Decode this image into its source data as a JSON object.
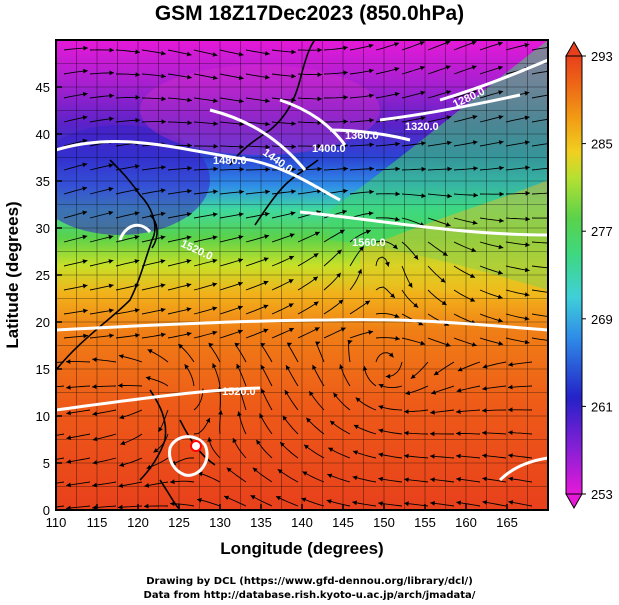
{
  "title": "GSM 18Z17Dec2023 (850.0hPa)",
  "x_axis": {
    "label": "Longitude (degrees)",
    "min": 110,
    "max": 170,
    "ticks": [
      "110",
      "115",
      "120",
      "125",
      "130",
      "135",
      "140",
      "145",
      "150",
      "155",
      "160",
      "165"
    ]
  },
  "y_axis": {
    "label": "Latitude  (degrees)",
    "min": 0,
    "max": 50,
    "ticks": [
      "0",
      "5",
      "10",
      "15",
      "20",
      "25",
      "30",
      "35",
      "40",
      "45"
    ]
  },
  "colorbar": {
    "min": 253,
    "max": 293,
    "ticks": [
      "253",
      "261",
      "269",
      "277",
      "285",
      "293"
    ],
    "colors": [
      "#e619d8",
      "#8a1fd6",
      "#2422c8",
      "#2f8ee8",
      "#3fd0d8",
      "#3ed87e",
      "#5ad24a",
      "#b4e032",
      "#f0d020",
      "#f29a14",
      "#ee6a16",
      "#e8401c"
    ]
  },
  "contour_labels": [
    "1480.0",
    "1440.0",
    "1400.0",
    "1360.0",
    "1320.0",
    "1280.0",
    "1520.0",
    "1560.0",
    "1520.0"
  ],
  "credits": {
    "line1": "Drawing by DCL (https://www.gfd-dennou.org/library/dcl/)",
    "line2": "Data from http://database.rish.kyoto-u.ac.jp/arch/jmadata/"
  }
}
